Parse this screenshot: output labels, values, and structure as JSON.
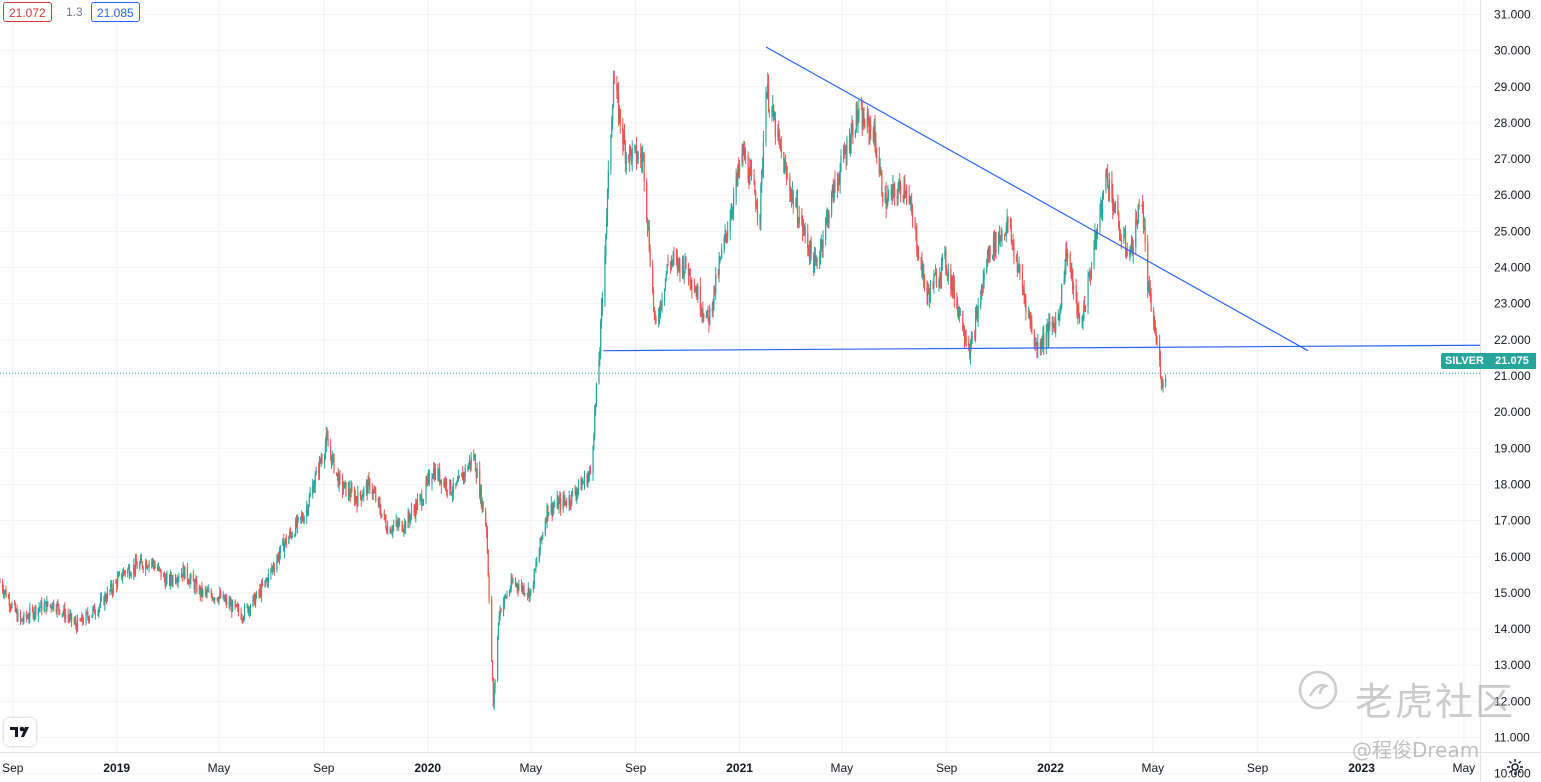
{
  "header": {
    "bid": "21.072",
    "spread": "1.3",
    "ask": "21.085"
  },
  "symbol": "SILVER",
  "last_price": "21.075",
  "watermark": {
    "text": "老虎社区",
    "author": "@程俊Dream"
  },
  "colors": {
    "up": "#26a69a",
    "down": "#ef5350",
    "trendline": "#2962ff",
    "grid": "#f0f3fa",
    "price_line": "#26a69a"
  },
  "icons": [
    "tradingview-logo-icon",
    "tiger-community-logo-icon",
    "settings-gear-icon"
  ],
  "chart_data": {
    "type": "candlestick",
    "title": "",
    "xlabel": "",
    "ylabel": "",
    "ylim": [
      10.6,
      31.4
    ],
    "xlim": [
      "2018-08-17",
      "2023-05-20"
    ],
    "y_ticks": [
      "31.000",
      "30.000",
      "29.000",
      "28.000",
      "27.000",
      "26.000",
      "25.000",
      "24.000",
      "23.000",
      "22.000",
      "21.000",
      "20.000",
      "19.000",
      "18.000",
      "17.000",
      "16.000",
      "15.000",
      "14.000",
      "13.000",
      "12.000",
      "11.000",
      "10.000"
    ],
    "x_ticks": [
      {
        "label": "Sep",
        "date": "2018-09-01",
        "year": false
      },
      {
        "label": "2019",
        "date": "2019-01-01",
        "year": true
      },
      {
        "label": "May",
        "date": "2019-05-01",
        "year": false
      },
      {
        "label": "Sep",
        "date": "2019-09-01",
        "year": false
      },
      {
        "label": "2020",
        "date": "2020-01-01",
        "year": true
      },
      {
        "label": "May",
        "date": "2020-05-01",
        "year": false
      },
      {
        "label": "Sep",
        "date": "2020-09-01",
        "year": false
      },
      {
        "label": "2021",
        "date": "2021-01-01",
        "year": true
      },
      {
        "label": "May",
        "date": "2021-05-01",
        "year": false
      },
      {
        "label": "Sep",
        "date": "2021-09-01",
        "year": false
      },
      {
        "label": "2022",
        "date": "2022-01-01",
        "year": true
      },
      {
        "label": "May",
        "date": "2022-05-01",
        "year": false
      },
      {
        "label": "Sep",
        "date": "2022-09-01",
        "year": false
      },
      {
        "label": "2023",
        "date": "2023-01-01",
        "year": true
      },
      {
        "label": "May",
        "date": "2023-05-01",
        "year": false
      }
    ],
    "price_path": [
      [
        "2018-08-17",
        15.3
      ],
      [
        "2018-09-10",
        14.2
      ],
      [
        "2018-10-01",
        14.6
      ],
      [
        "2018-10-20",
        14.7
      ],
      [
        "2018-11-15",
        14.1
      ],
      [
        "2018-12-10",
        14.6
      ],
      [
        "2019-01-10",
        15.6
      ],
      [
        "2019-02-10",
        15.9
      ],
      [
        "2019-03-01",
        15.3
      ],
      [
        "2019-03-20",
        15.6
      ],
      [
        "2019-04-10",
        15.0
      ],
      [
        "2019-05-01",
        14.9
      ],
      [
        "2019-05-28",
        14.4
      ],
      [
        "2019-06-15",
        14.9
      ],
      [
        "2019-06-25",
        15.3
      ],
      [
        "2019-07-15",
        16.3
      ],
      [
        "2019-08-10",
        17.2
      ],
      [
        "2019-09-04",
        19.2
      ],
      [
        "2019-09-20",
        18.0
      ],
      [
        "2019-10-10",
        17.6
      ],
      [
        "2019-10-25",
        18.0
      ],
      [
        "2019-11-15",
        16.8
      ],
      [
        "2019-12-05",
        16.9
      ],
      [
        "2019-12-27",
        17.7
      ],
      [
        "2020-01-07",
        18.4
      ],
      [
        "2020-02-01",
        17.8
      ],
      [
        "2020-02-24",
        18.8
      ],
      [
        "2020-03-10",
        16.8
      ],
      [
        "2020-03-18",
        11.9
      ],
      [
        "2020-03-25",
        14.5
      ],
      [
        "2020-04-10",
        15.3
      ],
      [
        "2020-05-01",
        15.0
      ],
      [
        "2020-05-20",
        17.3
      ],
      [
        "2020-06-15",
        17.6
      ],
      [
        "2020-07-10",
        18.3
      ],
      [
        "2020-07-21",
        21.8
      ],
      [
        "2020-08-06",
        29.2
      ],
      [
        "2020-08-20",
        27.2
      ],
      [
        "2020-09-10",
        27.0
      ],
      [
        "2020-09-24",
        22.3
      ],
      [
        "2020-10-10",
        24.2
      ],
      [
        "2020-11-01",
        24.0
      ],
      [
        "2020-11-25",
        22.5
      ],
      [
        "2020-12-15",
        24.8
      ],
      [
        "2021-01-05",
        27.2
      ],
      [
        "2021-01-25",
        25.5
      ],
      [
        "2021-02-01",
        29.0
      ],
      [
        "2021-02-25",
        26.5
      ],
      [
        "2021-03-31",
        24.0
      ],
      [
        "2021-04-20",
        26.0
      ],
      [
        "2021-05-18",
        28.2
      ],
      [
        "2021-06-07",
        27.8
      ],
      [
        "2021-06-20",
        25.8
      ],
      [
        "2021-07-15",
        26.3
      ],
      [
        "2021-08-09",
        23.2
      ],
      [
        "2021-08-30",
        24.2
      ],
      [
        "2021-09-29",
        21.7
      ],
      [
        "2021-10-20",
        24.4
      ],
      [
        "2021-11-12",
        25.2
      ],
      [
        "2021-12-15",
        21.8
      ],
      [
        "2022-01-10",
        22.6
      ],
      [
        "2022-01-20",
        24.5
      ],
      [
        "2022-02-05",
        22.3
      ],
      [
        "2022-03-08",
        26.6
      ],
      [
        "2022-03-25",
        24.8
      ],
      [
        "2022-04-05",
        24.4
      ],
      [
        "2022-04-18",
        26.0
      ],
      [
        "2022-04-25",
        23.5
      ],
      [
        "2022-05-05",
        22.0
      ],
      [
        "2022-05-13",
        20.7
      ],
      [
        "2022-05-16",
        21.07
      ]
    ],
    "trendlines": [
      {
        "name": "descending resistance",
        "start": [
          "2021-02-01",
          30.1
        ],
        "end": [
          "2022-10-30",
          21.7
        ]
      },
      {
        "name": "horizontal support",
        "start": [
          "2020-07-25",
          21.7
        ],
        "end": [
          "2023-05-20",
          21.85
        ]
      }
    ],
    "last_price_line": 21.075
  }
}
